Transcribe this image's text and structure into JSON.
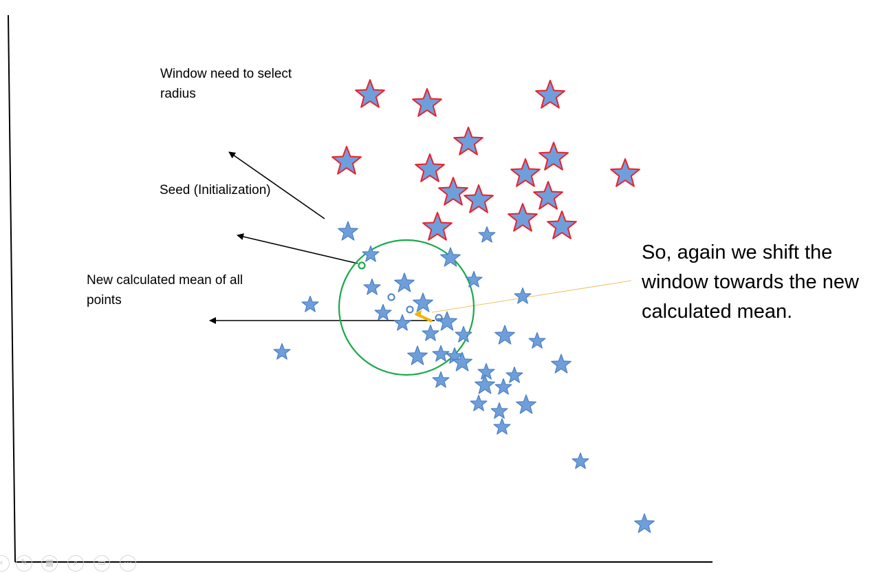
{
  "labels": {
    "window": "Window need to select radius",
    "seed": "Seed (Initialization)",
    "mean": "New calculated mean of all points",
    "shift": "So, again we shift the window towards the new calculated mean."
  },
  "colors": {
    "blue_star_fill": "#6f9fdb",
    "blue_star_stroke": "#4a7ec2",
    "red_star_stroke": "#e8222e",
    "window_circle": "#19a84a",
    "seed_point": "#19a84a",
    "mean_marker": "#f0b400",
    "axis": "#000000",
    "arrow": "#000000"
  },
  "toolbar": {
    "icons": [
      "previous-icon",
      "pen-icon",
      "slides-icon",
      "zoom-icon",
      "subtitles-icon",
      "more-icon"
    ]
  }
}
